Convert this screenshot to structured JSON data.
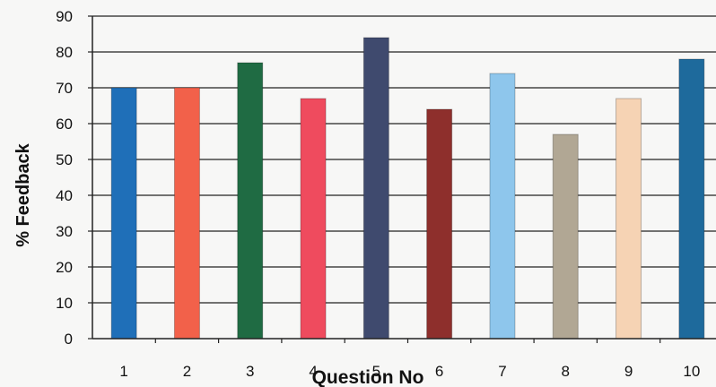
{
  "chart_data": {
    "type": "bar",
    "categories": [
      "1",
      "2",
      "3",
      "4",
      "5",
      "6",
      "7",
      "8",
      "9",
      "10"
    ],
    "values": [
      70,
      70,
      77,
      67,
      84,
      64,
      74,
      57,
      67,
      78
    ],
    "colors": [
      "#1f6fb8",
      "#f2614a",
      "#1f6b43",
      "#ef4b5e",
      "#3f4a6e",
      "#8e2f2c",
      "#8ec6ec",
      "#b1a794",
      "#f6d3b4",
      "#1e6a9c"
    ],
    "xlabel": "Question No",
    "ylabel": "% Feedback",
    "ylim": [
      0,
      90
    ],
    "yticks": [
      "0",
      "10",
      "20",
      "30",
      "40",
      "50",
      "60",
      "70",
      "80",
      "90"
    ],
    "grid": true
  }
}
